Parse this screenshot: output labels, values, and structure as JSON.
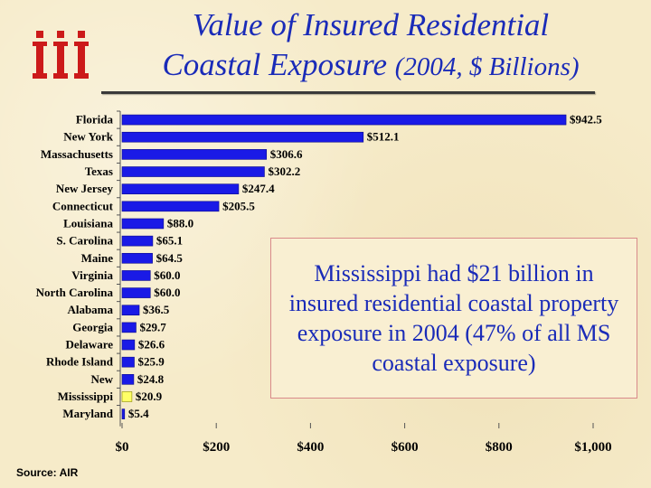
{
  "header": {
    "logo_text": "iii",
    "title_line1": "Value of Insured Residential",
    "title_line2_main": "Coastal Exposure",
    "title_line2_small": "(2004, $ Billions)"
  },
  "callout": {
    "text": "Mississippi had $21 billion in insured residential coastal property exposure in 2004 (47% of all MS coastal exposure)"
  },
  "source": "Source: AIR",
  "colors": {
    "bar": "#1a1ae6",
    "highlight": "#ffff66",
    "title": "#1a2bb8",
    "logo": "#cc1a1a"
  },
  "chart_data": {
    "type": "bar",
    "orientation": "horizontal",
    "title": "Value of Insured Residential Coastal Exposure (2004, $ Billions)",
    "categories": [
      "Florida",
      "New York",
      "Massachusetts",
      "Texas",
      "New Jersey",
      "Connecticut",
      "Louisiana",
      "S. Carolina",
      "Maine",
      "Virginia",
      "North Carolina",
      "Alabama",
      "Georgia",
      "Delaware",
      "Rhode Island",
      "New",
      "Mississippi",
      "Maryland"
    ],
    "values": [
      942.5,
      512.1,
      306.6,
      302.2,
      247.4,
      205.5,
      88.0,
      65.1,
      64.5,
      60.0,
      60.0,
      36.5,
      29.7,
      26.6,
      25.9,
      24.8,
      20.9,
      5.4
    ],
    "value_labels": [
      "$942.5",
      "$512.1",
      "$306.6",
      "$302.2",
      "$247.4",
      "$205.5",
      "$88.0",
      "$65.1",
      "$64.5",
      "$60.0",
      "$60.0",
      "$36.5",
      "$29.7",
      "$26.6",
      "$25.9",
      "$24.8",
      "$20.9",
      "$5.4"
    ],
    "highlight": "Mississippi",
    "xlim": [
      0,
      1000
    ],
    "xticks": [
      0,
      200,
      400,
      600,
      800,
      1000
    ],
    "xtick_labels": [
      "$0",
      "$200",
      "$400",
      "$600",
      "$800",
      "$1,000"
    ]
  }
}
